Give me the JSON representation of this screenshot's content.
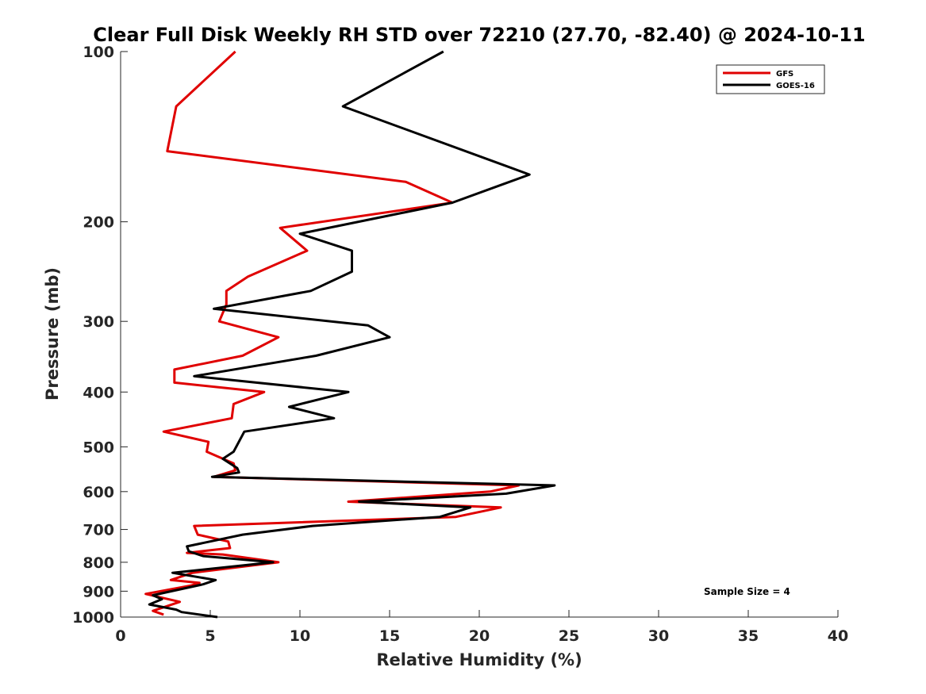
{
  "chart_data": {
    "type": "line",
    "title": "Clear Full Disk Weekly RH STD over 72210 (27.70, -82.40) @ 2024-10-11",
    "xlabel": "Relative Humidity (%)",
    "ylabel": "Pressure (mb)",
    "xlim": [
      0,
      40
    ],
    "ylim": [
      100,
      1000
    ],
    "y_scale": "log",
    "y_reversed": true,
    "x_ticks": [
      0,
      5,
      10,
      15,
      20,
      25,
      30,
      35,
      40
    ],
    "y_ticks": [
      100,
      200,
      300,
      400,
      500,
      600,
      700,
      800,
      900,
      1000
    ],
    "grid": false,
    "legend_position": "top-right",
    "annotation": "Sample Size = 4",
    "series": [
      {
        "name": "GFS",
        "color": "#e00000",
        "points": [
          [
            6.4,
            100
          ],
          [
            3.1,
            125
          ],
          [
            2.6,
            150
          ],
          [
            15.9,
            170
          ],
          [
            18.5,
            185
          ],
          [
            8.9,
            205
          ],
          [
            10.4,
            225
          ],
          [
            7.1,
            250
          ],
          [
            5.9,
            265
          ],
          [
            5.9,
            280
          ],
          [
            5.5,
            300
          ],
          [
            8.8,
            320
          ],
          [
            6.8,
            345
          ],
          [
            3.0,
            365
          ],
          [
            3.0,
            385
          ],
          [
            8.0,
            400
          ],
          [
            6.3,
            420
          ],
          [
            6.2,
            445
          ],
          [
            2.4,
            470
          ],
          [
            4.9,
            490
          ],
          [
            4.8,
            510
          ],
          [
            6.3,
            535
          ],
          [
            6.4,
            550
          ],
          [
            5.2,
            565
          ],
          [
            22.2,
            585
          ],
          [
            20.6,
            600
          ],
          [
            12.7,
            625
          ],
          [
            21.2,
            640
          ],
          [
            18.7,
            665
          ],
          [
            4.1,
            690
          ],
          [
            4.3,
            715
          ],
          [
            6.0,
            735
          ],
          [
            6.1,
            755
          ],
          [
            3.7,
            770
          ],
          [
            5.7,
            775
          ],
          [
            8.8,
            800
          ],
          [
            4.0,
            835
          ],
          [
            2.8,
            860
          ],
          [
            4.4,
            870
          ],
          [
            3.9,
            880
          ],
          [
            1.4,
            910
          ],
          [
            3.3,
            940
          ],
          [
            1.8,
            975
          ],
          [
            2.4,
            990
          ]
        ]
      },
      {
        "name": "GOES-16",
        "color": "#000000",
        "points": [
          [
            18.0,
            100
          ],
          [
            12.4,
            125
          ],
          [
            22.8,
            165
          ],
          [
            18.5,
            185
          ],
          [
            10.0,
            210
          ],
          [
            12.9,
            225
          ],
          [
            12.9,
            245
          ],
          [
            10.6,
            265
          ],
          [
            5.2,
            285
          ],
          [
            13.8,
            305
          ],
          [
            15.0,
            320
          ],
          [
            10.9,
            345
          ],
          [
            4.1,
            375
          ],
          [
            12.7,
            400
          ],
          [
            9.4,
            425
          ],
          [
            11.9,
            445
          ],
          [
            6.9,
            470
          ],
          [
            6.3,
            510
          ],
          [
            5.7,
            525
          ],
          [
            6.5,
            545
          ],
          [
            6.6,
            555
          ],
          [
            5.1,
            565
          ],
          [
            24.2,
            585
          ],
          [
            21.5,
            605
          ],
          [
            13.3,
            625
          ],
          [
            19.5,
            640
          ],
          [
            17.8,
            665
          ],
          [
            10.7,
            690
          ],
          [
            6.8,
            715
          ],
          [
            3.7,
            750
          ],
          [
            3.8,
            765
          ],
          [
            4.6,
            780
          ],
          [
            8.5,
            800
          ],
          [
            2.9,
            835
          ],
          [
            5.3,
            860
          ],
          [
            4.6,
            875
          ],
          [
            1.8,
            915
          ],
          [
            2.3,
            930
          ],
          [
            1.6,
            950
          ],
          [
            3.1,
            970
          ],
          [
            3.4,
            980
          ],
          [
            5.4,
            1000
          ]
        ]
      }
    ]
  }
}
